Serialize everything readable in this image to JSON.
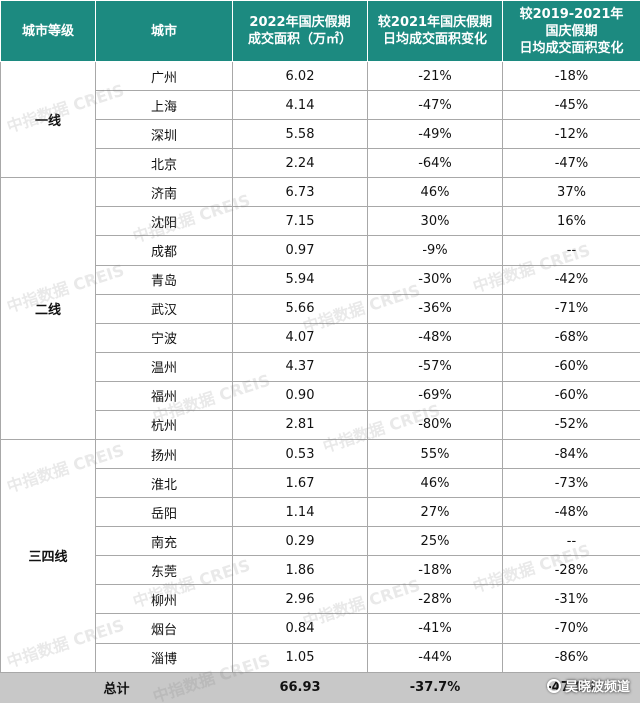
{
  "header": {
    "tier": "城市等级",
    "city": "城市",
    "area_line1": "2022年国庆假期",
    "area_line2": "成交面积（万㎡）",
    "vs2021_line1": "较2021年国庆假期",
    "vs2021_line2": "日均成交面积变化",
    "vs1921_line1": "较2019-2021年",
    "vs1921_line2": "国庆假期",
    "vs1921_line3": "日均成交面积变化"
  },
  "tiers": {
    "tier1": "一线",
    "tier2": "二线",
    "tier34": "三四线"
  },
  "rows": [
    {
      "city": "广州",
      "area": "6.02",
      "vs2021": "-21%",
      "vs1921": "-18%"
    },
    {
      "city": "上海",
      "area": "4.14",
      "vs2021": "-47%",
      "vs1921": "-45%"
    },
    {
      "city": "深圳",
      "area": "5.58",
      "vs2021": "-49%",
      "vs1921": "-12%"
    },
    {
      "city": "北京",
      "area": "2.24",
      "vs2021": "-64%",
      "vs1921": "-47%"
    },
    {
      "city": "济南",
      "area": "6.73",
      "vs2021": "46%",
      "vs1921": "37%"
    },
    {
      "city": "沈阳",
      "area": "7.15",
      "vs2021": "30%",
      "vs1921": "16%"
    },
    {
      "city": "成都",
      "area": "0.97",
      "vs2021": "-9%",
      "vs1921": "--"
    },
    {
      "city": "青岛",
      "area": "5.94",
      "vs2021": "-30%",
      "vs1921": "-42%"
    },
    {
      "city": "武汉",
      "area": "5.66",
      "vs2021": "-36%",
      "vs1921": "-71%"
    },
    {
      "city": "宁波",
      "area": "4.07",
      "vs2021": "-48%",
      "vs1921": "-68%"
    },
    {
      "city": "温州",
      "area": "4.37",
      "vs2021": "-57%",
      "vs1921": "-60%"
    },
    {
      "city": "福州",
      "area": "0.90",
      "vs2021": "-69%",
      "vs1921": "-60%"
    },
    {
      "city": "杭州",
      "area": "2.81",
      "vs2021": "-80%",
      "vs1921": "-52%"
    },
    {
      "city": "扬州",
      "area": "0.53",
      "vs2021": "55%",
      "vs1921": "-84%"
    },
    {
      "city": "淮北",
      "area": "1.67",
      "vs2021": "46%",
      "vs1921": "-73%"
    },
    {
      "city": "岳阳",
      "area": "1.14",
      "vs2021": "27%",
      "vs1921": "-48%"
    },
    {
      "city": "南充",
      "area": "0.29",
      "vs2021": "25%",
      "vs1921": "--"
    },
    {
      "city": "东莞",
      "area": "1.86",
      "vs2021": "-18%",
      "vs1921": "-28%"
    },
    {
      "city": "柳州",
      "area": "2.96",
      "vs2021": "-28%",
      "vs1921": "-31%"
    },
    {
      "city": "烟台",
      "area": "0.84",
      "vs2021": "-41%",
      "vs1921": "-70%"
    },
    {
      "city": "淄博",
      "area": "1.05",
      "vs2021": "-44%",
      "vs1921": "-86%"
    }
  ],
  "total": {
    "label": "总计",
    "area": "66.93",
    "vs2021": "-37.7%",
    "vs1921": "-47.0%"
  },
  "watermark": "中指数据 CREIS",
  "credit": "吴晓波频道"
}
